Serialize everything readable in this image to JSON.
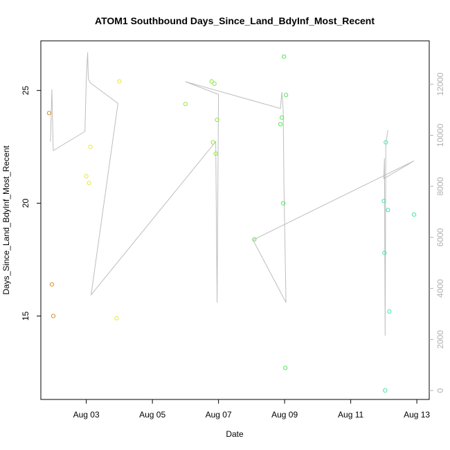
{
  "chart_data": {
    "type": "scatter",
    "title": "ATOM1 Southbound Days_Since_Land_BdyInf_Most_Recent",
    "xlabel": "Date",
    "ylabel": "Days_Since_Land_BdyInf_Most_Recent",
    "x_ticks": [
      {
        "date": "2023-08-03",
        "label": "Aug 03"
      },
      {
        "date": "2023-08-05",
        "label": "Aug 05"
      },
      {
        "date": "2023-08-07",
        "label": "Aug 07"
      },
      {
        "date": "2023-08-09",
        "label": "Aug 09"
      },
      {
        "date": "2023-08-11",
        "label": "Aug 11"
      },
      {
        "date": "2023-08-13",
        "label": "Aug 13"
      }
    ],
    "xlim": [
      "2023-08-01T15:00",
      "2023-08-13T09:00"
    ],
    "y_ticks": [
      15,
      20,
      25
    ],
    "ylim": [
      11.3,
      27.2
    ],
    "y2_ticks": [
      0,
      2000,
      4000,
      6000,
      8000,
      10000,
      12000
    ],
    "y2lim": [
      -350,
      13700
    ],
    "grid": false,
    "points": [
      {
        "x": "2023-08-01T21:00",
        "y": 24.0,
        "color": "#e08a1e"
      },
      {
        "x": "2023-08-01T23:00",
        "y": 16.4,
        "color": "#e08a1e"
      },
      {
        "x": "2023-08-02T00:00",
        "y": 15.0,
        "color": "#e08a1e"
      },
      {
        "x": "2023-08-03T00:00",
        "y": 21.2,
        "color": "#e6e645"
      },
      {
        "x": "2023-08-03T02:00",
        "y": 20.9,
        "color": "#e6e645"
      },
      {
        "x": "2023-08-03T03:00",
        "y": 22.5,
        "color": "#e6e645"
      },
      {
        "x": "2023-08-03T22:00",
        "y": 14.9,
        "color": "#e6e645"
      },
      {
        "x": "2023-08-04T00:00",
        "y": 25.4,
        "color": "#e6e645"
      },
      {
        "x": "2023-08-06T00:00",
        "y": 24.4,
        "color": "#9ee63a"
      },
      {
        "x": "2023-08-06T19:00",
        "y": 25.4,
        "color": "#8ee63a"
      },
      {
        "x": "2023-08-06T20:00",
        "y": 22.7,
        "color": "#8ee63a"
      },
      {
        "x": "2023-08-06T21:00",
        "y": 25.3,
        "color": "#8ee63a"
      },
      {
        "x": "2023-08-06T22:00",
        "y": 22.2,
        "color": "#8ee63a"
      },
      {
        "x": "2023-08-06T23:00",
        "y": 23.7,
        "color": "#8ee63a"
      },
      {
        "x": "2023-08-08T02:00",
        "y": 18.4,
        "color": "#5ee64a"
      },
      {
        "x": "2023-08-08T21:00",
        "y": 23.5,
        "color": "#55e655"
      },
      {
        "x": "2023-08-08T22:00",
        "y": 23.8,
        "color": "#55e655"
      },
      {
        "x": "2023-08-08T23:00",
        "y": 20.0,
        "color": "#55e655"
      },
      {
        "x": "2023-08-08T23:30",
        "y": 26.5,
        "color": "#55e655"
      },
      {
        "x": "2023-08-09T00:30",
        "y": 12.7,
        "color": "#55e655"
      },
      {
        "x": "2023-08-09T01:00",
        "y": 24.8,
        "color": "#55e655"
      },
      {
        "x": "2023-08-12T00:00",
        "y": 20.1,
        "color": "#45e6a0"
      },
      {
        "x": "2023-08-12T00:30",
        "y": 17.8,
        "color": "#45e6a0"
      },
      {
        "x": "2023-08-12T01:00",
        "y": 11.7,
        "color": "#45e6a0"
      },
      {
        "x": "2023-08-12T01:30",
        "y": 22.7,
        "color": "#45e6a0"
      },
      {
        "x": "2023-08-12T03:00",
        "y": 19.7,
        "color": "#45e6a0"
      },
      {
        "x": "2023-08-12T04:00",
        "y": 15.2,
        "color": "#45e6a0"
      },
      {
        "x": "2023-08-12T22:00",
        "y": 19.5,
        "color": "#45e6a0"
      }
    ],
    "secondary_line": {
      "color": "#bdbdbd",
      "points": [
        {
          "x": "2023-08-01T22:00",
          "y2": 9750
        },
        {
          "x": "2023-08-01T23:00",
          "y2": 11800
        },
        {
          "x": "2023-08-02T00:00",
          "y2": 9400
        },
        {
          "x": "2023-08-02T23:00",
          "y2": 10150
        },
        {
          "x": "2023-08-03T00:00",
          "y2": 12200
        },
        {
          "x": "2023-08-03T01:00",
          "y2": 13250
        },
        {
          "x": "2023-08-03T01:30",
          "y2": 12200
        },
        {
          "x": "2023-08-03T03:00",
          "y2": 12050
        },
        {
          "x": "2023-08-03T23:00",
          "y2": 11250
        },
        {
          "x": "2023-08-03T03:30",
          "y2": 3750
        },
        {
          "x": "2023-08-06T22:00",
          "y2": 9750
        },
        {
          "x": "2023-08-06T23:00",
          "y2": 3450
        },
        {
          "x": "2023-08-07T00:00",
          "y2": 11600
        },
        {
          "x": "2023-08-06T00:00",
          "y2": 12100
        },
        {
          "x": "2023-08-08T21:00",
          "y2": 11050
        },
        {
          "x": "2023-08-08T22:00",
          "y2": 11700
        },
        {
          "x": "2023-08-08T23:00",
          "y2": 10950
        },
        {
          "x": "2023-08-08T23:30",
          "y2": 8100
        },
        {
          "x": "2023-08-09T01:00",
          "y2": 3450
        },
        {
          "x": "2023-08-08T01:00",
          "y2": 5900
        },
        {
          "x": "2023-08-12T22:00",
          "y2": 9000
        },
        {
          "x": "2023-08-12T00:00",
          "y2": 8300
        },
        {
          "x": "2023-08-12T00:30",
          "y2": 9100
        },
        {
          "x": "2023-08-12T01:00",
          "y2": 2150
        },
        {
          "x": "2023-08-12T01:30",
          "y2": 9700
        },
        {
          "x": "2023-08-12T03:00",
          "y2": 10200
        }
      ]
    }
  }
}
